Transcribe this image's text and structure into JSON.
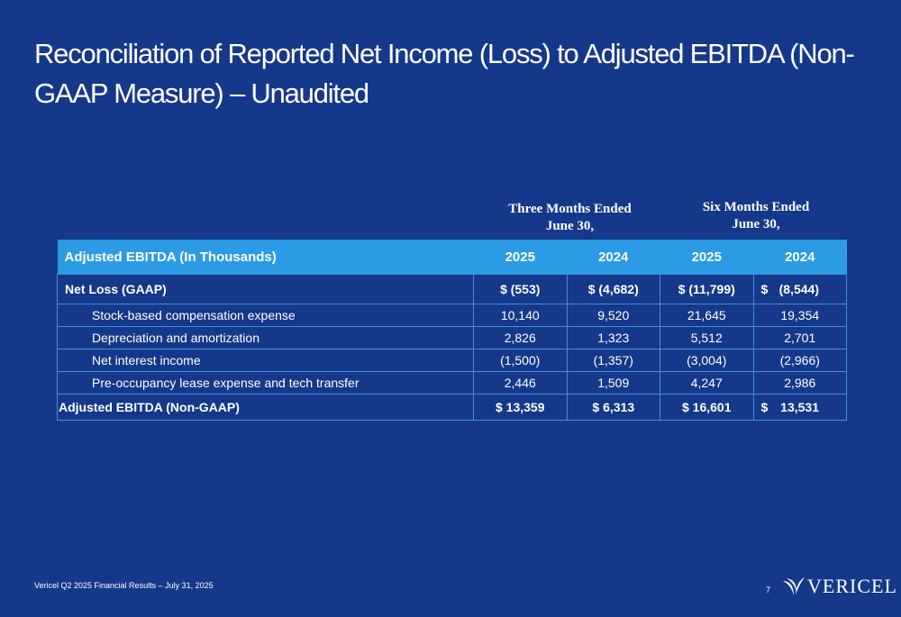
{
  "title": "Reconciliation of Reported Net Income (Loss) to Adjusted EBITDA (Non-GAAP Measure) – Unaudited",
  "periods": [
    {
      "line1": "Three Months Ended",
      "line2": "June 30,"
    },
    {
      "line1": "Six Months Ended",
      "line2": "June 30,"
    }
  ],
  "table": {
    "header_label": "Adjusted EBITDA (In Thousands)",
    "years": [
      "2025",
      "2024",
      "2025",
      "2024"
    ],
    "rows": [
      {
        "label": "Net Loss (GAAP)",
        "values": [
          "$ (553)",
          "$ (4,682)",
          "$ (11,799)",
          "(8,544)"
        ],
        "last_prefix": "$"
      },
      {
        "label": "Stock-based compensation expense",
        "values": [
          "10,140",
          "9,520",
          "21,645",
          "19,354"
        ]
      },
      {
        "label": "Depreciation and amortization",
        "values": [
          "2,826",
          "1,323",
          "5,512",
          "2,701"
        ]
      },
      {
        "label": "Net interest income",
        "values": [
          "(1,500)",
          "(1,357)",
          "(3,004)",
          "(2,966)"
        ]
      },
      {
        "label": "Pre-occupancy lease expense and tech transfer",
        "values": [
          "2,446",
          "1,509",
          "4,247",
          "2,986"
        ]
      },
      {
        "label": "Adjusted EBITDA (Non-GAAP)",
        "values": [
          "$ 13,359",
          "$ 6,313",
          "$ 16,601",
          "13,531"
        ],
        "last_prefix": "$"
      }
    ]
  },
  "footer": "Vericel Q2 2025 Financial Results – July 31, 2025",
  "page_number": "7",
  "logo": {
    "wordmark": "VERICEL",
    "icon": "vericel-wing-logo-icon"
  }
}
